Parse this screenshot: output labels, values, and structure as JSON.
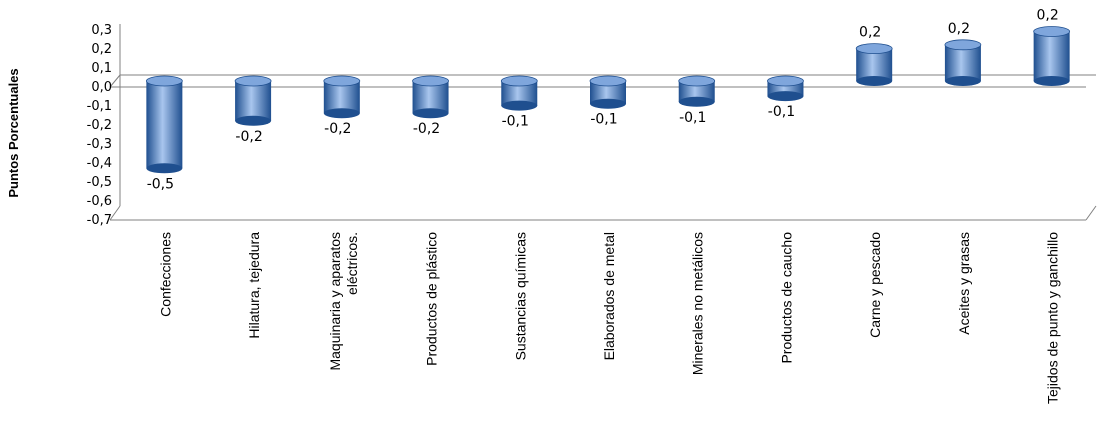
{
  "chart_data": {
    "type": "bar",
    "ylabel": "Puntos Porcentuales",
    "xlabel": "",
    "title": "",
    "ylim": [
      -0.7,
      0.3
    ],
    "y_ticks": [
      "-0,7",
      "-0,6",
      "-0,5",
      "-0,4",
      "-0,3",
      "-0,2",
      "-0,1",
      "0,0",
      "0,1",
      "0,2",
      "0,3"
    ],
    "categories": [
      [
        "Confecciones"
      ],
      [
        "Hilatura, tejedura"
      ],
      [
        "Maquinaria y aparatos",
        "eléctricos."
      ],
      [
        "Productos de plástico"
      ],
      [
        "Sustancias químicas"
      ],
      [
        "Elaborados de metal"
      ],
      [
        "Minerales no metálicos"
      ],
      [
        "Productos de caucho"
      ],
      [
        "Carne y pescado"
      ],
      [
        "Aceites y grasas"
      ],
      [
        "Tejidos de punto y ganchillo"
      ]
    ],
    "values": [
      -0.47,
      -0.22,
      -0.18,
      -0.18,
      -0.14,
      -0.13,
      -0.12,
      -0.09,
      0.16,
      0.18,
      0.25
    ],
    "data_labels": [
      "-0,5",
      "-0,2",
      "-0,2",
      "-0,2",
      "-0,1",
      "-0,1",
      "-0,1",
      "-0,1",
      "0,2",
      "0,2",
      "0,2"
    ],
    "grid": false,
    "legend": "none",
    "colors": {
      "bar_dark": "#1f4f8f",
      "bar_light": "#a9c6ee",
      "axis": "#808080"
    }
  }
}
